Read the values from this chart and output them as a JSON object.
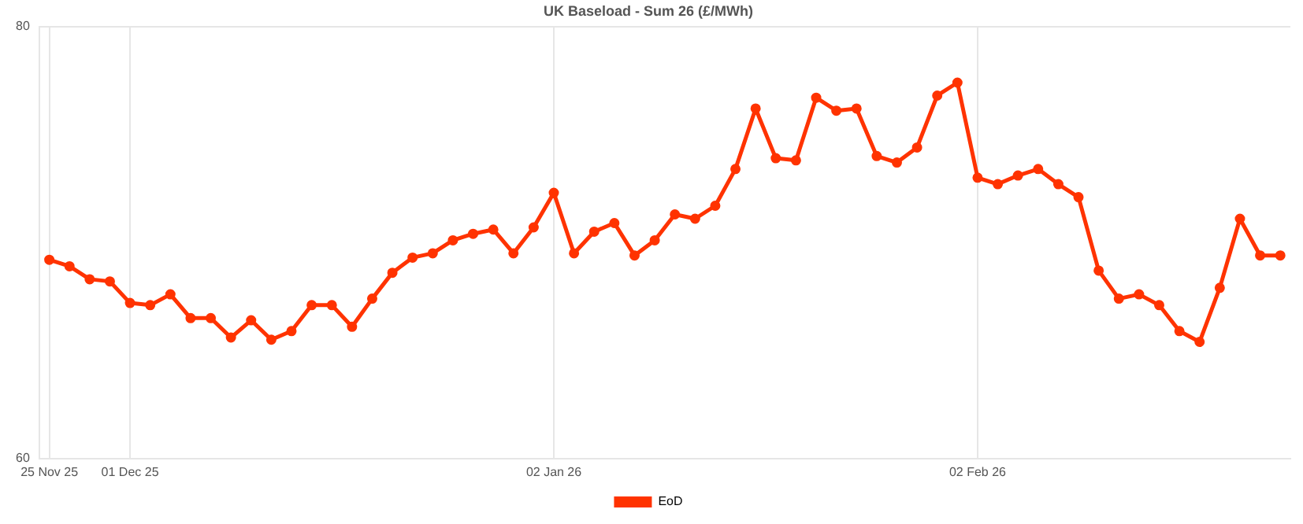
{
  "chart_data": {
    "type": "line",
    "title": "UK Baseload - Sum 26 (£/MWh)",
    "categories": [
      "25 Nov 25",
      null,
      null,
      null,
      "01 Dec 25",
      null,
      null,
      null,
      null,
      null,
      null,
      null,
      null,
      null,
      null,
      null,
      null,
      null,
      null,
      null,
      null,
      null,
      null,
      null,
      null,
      "02 Jan 26",
      null,
      null,
      null,
      null,
      null,
      null,
      null,
      null,
      null,
      null,
      null,
      null,
      null,
      null,
      null,
      null,
      null,
      null,
      null,
      null,
      "02 Feb 26",
      null,
      null,
      null,
      null,
      null,
      null,
      null,
      null,
      null,
      null,
      null,
      null,
      null,
      null,
      null
    ],
    "series": [
      {
        "name": "EoD",
        "color": "#ff3300",
        "values": [
          69.2,
          68.9,
          68.3,
          68.2,
          67.2,
          67.1,
          67.6,
          66.5,
          66.5,
          65.6,
          66.4,
          65.5,
          65.9,
          67.1,
          67.1,
          66.1,
          67.4,
          68.6,
          69.3,
          69.5,
          70.1,
          70.4,
          70.6,
          69.5,
          70.7,
          72.3,
          69.5,
          70.5,
          70.9,
          69.4,
          70.1,
          71.3,
          71.1,
          71.7,
          73.4,
          76.2,
          73.9,
          73.8,
          76.7,
          76.1,
          76.2,
          74.0,
          73.7,
          74.4,
          76.8,
          77.4,
          73.0,
          72.7,
          73.1,
          73.4,
          72.7,
          72.1,
          68.7,
          67.4,
          67.6,
          67.1,
          65.9,
          65.4,
          67.9,
          71.1,
          69.4,
          69.4
        ]
      }
    ],
    "ylim": [
      60,
      80
    ],
    "yticks": [
      60,
      80
    ],
    "grid": true,
    "legend": "bottom",
    "marker": "circle",
    "line_style": "solid"
  }
}
